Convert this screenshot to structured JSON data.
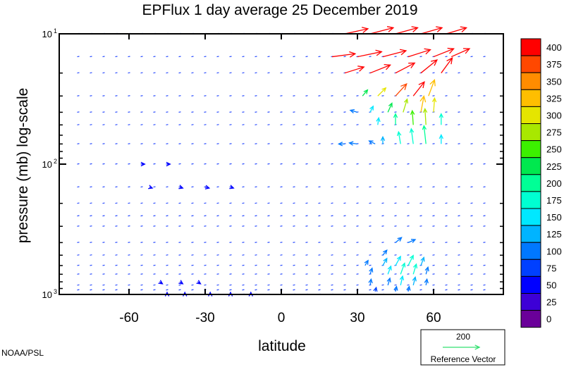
{
  "chart_data": {
    "type": "vector",
    "title": "EPFlux  1 day average  25 December  2019",
    "xlabel": "latitude",
    "ylabel": "pressure (mb)  log-scale",
    "x_ticks": [
      "-60",
      "-30",
      "0",
      "30",
      "60"
    ],
    "x_tick_values": [
      -60,
      -30,
      0,
      30,
      60
    ],
    "xlim": [
      -87.5,
      87.5
    ],
    "y_scale": "log",
    "ylim": [
      1000,
      10
    ],
    "y_ticks": [
      {
        "base": "10",
        "exp": "1",
        "value": 10
      },
      {
        "base": "10",
        "exp": "2",
        "value": 100
      },
      {
        "base": "10",
        "exp": "3",
        "value": 1000
      }
    ],
    "pressure_levels": [
      10,
      15,
      20,
      30,
      40,
      50,
      70,
      100,
      150,
      200,
      250,
      300,
      400,
      500,
      600,
      700,
      850,
      925,
      1000
    ],
    "colorbar": {
      "labels": [
        "400",
        "375",
        "350",
        "325",
        "300",
        "275",
        "250",
        "225",
        "200",
        "175",
        "150",
        "125",
        "100",
        "75",
        "50",
        "25",
        "0"
      ],
      "colors": [
        "#ff0000",
        "#ff4800",
        "#ff8c00",
        "#ffbe00",
        "#e5e500",
        "#a8e800",
        "#3cf000",
        "#00e84e",
        "#00ff96",
        "#00ffd2",
        "#00e8ff",
        "#00b4ff",
        "#0078ff",
        "#0040ff",
        "#0000ff",
        "#3d00d6",
        "#6a0099"
      ],
      "ranges": [
        [
          400,
          10000
        ],
        [
          375,
          400
        ],
        [
          350,
          375
        ],
        [
          325,
          350
        ],
        [
          300,
          325
        ],
        [
          275,
          300
        ],
        [
          250,
          275
        ],
        [
          225,
          250
        ],
        [
          200,
          225
        ],
        [
          175,
          200
        ],
        [
          150,
          175
        ],
        [
          125,
          150
        ],
        [
          100,
          125
        ],
        [
          75,
          100
        ],
        [
          50,
          75
        ],
        [
          25,
          50
        ],
        [
          0,
          25
        ]
      ]
    },
    "reference_vector": {
      "value": "200",
      "label": "Reference Vector",
      "color": "#33e070"
    },
    "credit": "NOAA/PSL",
    "vectors": [
      {
        "lat": 25,
        "p": 10,
        "u": 2.3,
        "v": 0.5,
        "m": 520
      },
      {
        "lat": 35,
        "p": 10,
        "u": 2.3,
        "v": 0.6,
        "m": 600
      },
      {
        "lat": 45,
        "p": 10,
        "u": 2.2,
        "v": 0.6,
        "m": 620
      },
      {
        "lat": 55,
        "p": 10,
        "u": 2.1,
        "v": 0.6,
        "m": 600
      },
      {
        "lat": 65,
        "p": 10,
        "u": 2.0,
        "v": 0.6,
        "m": 560
      },
      {
        "lat": 20,
        "p": 15,
        "u": 2.3,
        "v": 0.3,
        "m": 500
      },
      {
        "lat": 30,
        "p": 15,
        "u": 2.4,
        "v": 0.5,
        "m": 620
      },
      {
        "lat": 40,
        "p": 15,
        "u": 2.3,
        "v": 0.6,
        "m": 650
      },
      {
        "lat": 50,
        "p": 15,
        "u": 2.2,
        "v": 0.7,
        "m": 640
      },
      {
        "lat": 60,
        "p": 15,
        "u": 2.0,
        "v": 0.8,
        "m": 600
      },
      {
        "lat": 67,
        "p": 15,
        "u": 1.8,
        "v": 0.8,
        "m": 520
      },
      {
        "lat": 25,
        "p": 20,
        "u": 1.9,
        "v": 0.6,
        "m": 480
      },
      {
        "lat": 35,
        "p": 20,
        "u": 2.0,
        "v": 0.8,
        "m": 560
      },
      {
        "lat": 45,
        "p": 20,
        "u": 1.9,
        "v": 1.0,
        "m": 580
      },
      {
        "lat": 55,
        "p": 20,
        "u": 1.6,
        "v": 1.3,
        "m": 540
      },
      {
        "lat": 63,
        "p": 20,
        "u": 1.1,
        "v": 1.5,
        "m": 450
      },
      {
        "lat": 32,
        "p": 30,
        "u": 0.5,
        "v": 0.6,
        "m": 240
      },
      {
        "lat": 38,
        "p": 30,
        "u": 0.8,
        "v": 0.8,
        "m": 300
      },
      {
        "lat": 45,
        "p": 30,
        "u": 1.1,
        "v": 1.2,
        "m": 380
      },
      {
        "lat": 52,
        "p": 30,
        "u": 1.1,
        "v": 1.4,
        "m": 420
      },
      {
        "lat": 58,
        "p": 30,
        "u": 0.6,
        "v": 1.6,
        "m": 330
      },
      {
        "lat": 35,
        "p": 40,
        "u": 0.3,
        "v": 0.6,
        "m": 160
      },
      {
        "lat": 42,
        "p": 40,
        "u": 0.4,
        "v": 0.9,
        "m": 230
      },
      {
        "lat": 48,
        "p": 40,
        "u": 0.4,
        "v": 1.3,
        "m": 290
      },
      {
        "lat": 55,
        "p": 40,
        "u": 0.3,
        "v": 1.6,
        "m": 330
      },
      {
        "lat": 60,
        "p": 40,
        "u": 0.1,
        "v": 1.4,
        "m": 300
      },
      {
        "lat": 38,
        "p": 50,
        "u": 0.1,
        "v": 0.7,
        "m": 150
      },
      {
        "lat": 45,
        "p": 50,
        "u": 0.0,
        "v": 1.1,
        "m": 210
      },
      {
        "lat": 52,
        "p": 50,
        "u": -0.1,
        "v": 1.4,
        "m": 250
      },
      {
        "lat": 57,
        "p": 50,
        "u": -0.1,
        "v": 1.6,
        "m": 280
      },
      {
        "lat": 63,
        "p": 50,
        "u": 0.0,
        "v": 1.1,
        "m": 190
      },
      {
        "lat": 40,
        "p": 70,
        "u": 0.0,
        "v": 0.7,
        "m": 130
      },
      {
        "lat": 47,
        "p": 70,
        "u": -0.2,
        "v": 1.2,
        "m": 190
      },
      {
        "lat": 52,
        "p": 70,
        "u": -0.2,
        "v": 1.5,
        "m": 190
      },
      {
        "lat": 57,
        "p": 70,
        "u": -0.2,
        "v": 1.8,
        "m": 200
      },
      {
        "lat": 63,
        "p": 70,
        "u": 0.0,
        "v": 0.9,
        "m": 150
      },
      {
        "lat": 30,
        "p": 40,
        "u": -0.7,
        "v": 0.2,
        "m": 110
      },
      {
        "lat": 25,
        "p": 70,
        "u": -0.6,
        "v": 0.0,
        "m": 110
      },
      {
        "lat": 30,
        "p": 70,
        "u": -0.8,
        "v": 0.1,
        "m": 120
      },
      {
        "lat": 37,
        "p": 70,
        "u": -0.6,
        "v": 0.3,
        "m": 120
      },
      {
        "lat": 40,
        "p": 500,
        "u": 0.4,
        "v": 0.5,
        "m": 110
      },
      {
        "lat": 45,
        "p": 400,
        "u": 0.6,
        "v": 0.5,
        "m": 115
      },
      {
        "lat": 50,
        "p": 400,
        "u": 0.7,
        "v": 0.3,
        "m": 110
      },
      {
        "lat": 33,
        "p": 600,
        "u": 0.3,
        "v": 0.5,
        "m": 100
      },
      {
        "lat": 40,
        "p": 600,
        "u": 0.4,
        "v": 0.7,
        "m": 130
      },
      {
        "lat": 45,
        "p": 600,
        "u": 0.5,
        "v": 0.9,
        "m": 160
      },
      {
        "lat": 50,
        "p": 600,
        "u": 0.5,
        "v": 1.0,
        "m": 190
      },
      {
        "lat": 55,
        "p": 600,
        "u": 0.3,
        "v": 0.8,
        "m": 140
      },
      {
        "lat": 35,
        "p": 700,
        "u": 0.2,
        "v": 0.6,
        "m": 110
      },
      {
        "lat": 42,
        "p": 700,
        "u": 0.3,
        "v": 0.8,
        "m": 150
      },
      {
        "lat": 47,
        "p": 700,
        "u": 0.4,
        "v": 1.1,
        "m": 190
      },
      {
        "lat": 52,
        "p": 700,
        "u": 0.3,
        "v": 1.0,
        "m": 180
      },
      {
        "lat": 57,
        "p": 700,
        "u": 0.2,
        "v": 0.7,
        "m": 120
      },
      {
        "lat": 35,
        "p": 850,
        "u": 0.1,
        "v": 0.6,
        "m": 110
      },
      {
        "lat": 42,
        "p": 850,
        "u": 0.2,
        "v": 0.7,
        "m": 120
      },
      {
        "lat": 47,
        "p": 850,
        "u": 0.2,
        "v": 0.9,
        "m": 150
      },
      {
        "lat": 52,
        "p": 850,
        "u": 0.2,
        "v": 0.8,
        "m": 130
      },
      {
        "lat": 57,
        "p": 850,
        "u": 0.1,
        "v": 0.6,
        "m": 100
      },
      {
        "lat": 37,
        "p": 950,
        "u": 0.1,
        "v": 0.4,
        "m": 90
      },
      {
        "lat": 45,
        "p": 950,
        "u": 0.1,
        "v": 0.5,
        "m": 100
      },
      {
        "lat": 50,
        "p": 950,
        "u": 0.1,
        "v": 0.5,
        "m": 110
      },
      {
        "lat": -52,
        "p": 150,
        "u": 0.3,
        "v": -0.1,
        "m": 70
      },
      {
        "lat": -40,
        "p": 150,
        "u": 0.3,
        "v": -0.1,
        "m": 70
      },
      {
        "lat": -30,
        "p": 150,
        "u": 0.4,
        "v": -0.1,
        "m": 70
      },
      {
        "lat": -20,
        "p": 150,
        "u": 0.3,
        "v": -0.1,
        "m": 70
      },
      {
        "lat": -55,
        "p": 100,
        "u": 0.3,
        "v": 0.0,
        "m": 60
      },
      {
        "lat": -45,
        "p": 100,
        "u": 0.3,
        "v": 0.0,
        "m": 60
      },
      {
        "lat": -48,
        "p": 800,
        "u": 0.3,
        "v": -0.2,
        "m": 65
      },
      {
        "lat": -40,
        "p": 800,
        "u": 0.3,
        "v": -0.2,
        "m": 70
      },
      {
        "lat": -33,
        "p": 800,
        "u": 0.3,
        "v": -0.2,
        "m": 70
      },
      {
        "lat": -45,
        "p": 1000,
        "u": 0.0,
        "v": 0.2,
        "m": 60
      },
      {
        "lat": -38,
        "p": 1000,
        "u": 0.0,
        "v": 0.2,
        "m": 60
      },
      {
        "lat": -28,
        "p": 1000,
        "u": 0.0,
        "v": 0.2,
        "m": 60
      },
      {
        "lat": -20,
        "p": 1000,
        "u": 0.0,
        "v": 0.2,
        "m": 60
      },
      {
        "lat": -12,
        "p": 1000,
        "u": 0.0,
        "v": 0.2,
        "m": 60
      }
    ]
  }
}
